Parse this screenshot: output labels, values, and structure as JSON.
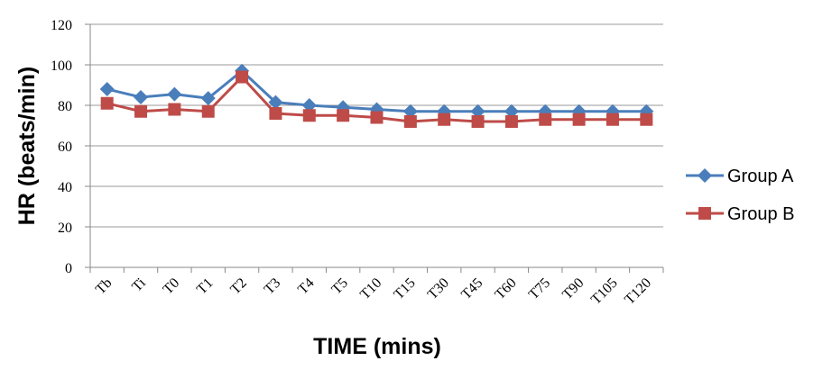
{
  "chart_data": {
    "type": "line",
    "xlabel": "TIME (mins)",
    "ylabel": "HR (beats/min)",
    "categories": [
      "Tb",
      "Ti",
      "T0",
      "T1",
      "T2",
      "T3",
      "T4",
      "T5",
      "T10",
      "T15",
      "T30",
      "T45",
      "T60",
      "T75",
      "T90",
      "T105",
      "T120"
    ],
    "series": [
      {
        "name": "Group A",
        "color": "#4a7ebb",
        "marker": "diamond",
        "values": [
          88,
          84,
          85.5,
          83.5,
          97,
          81.5,
          80,
          79,
          78,
          77,
          77,
          77,
          77,
          77,
          77,
          77,
          77
        ]
      },
      {
        "name": "Group B",
        "color": "#be4b48",
        "marker": "square",
        "values": [
          81,
          77,
          78,
          77,
          94,
          76,
          75,
          75,
          74,
          72,
          73,
          72,
          72,
          73,
          73,
          73,
          73
        ]
      }
    ],
    "ylim": [
      0,
      120
    ],
    "yticks": [
      0,
      20,
      40,
      60,
      80,
      100,
      120
    ],
    "grid": true,
    "legend": "right"
  }
}
